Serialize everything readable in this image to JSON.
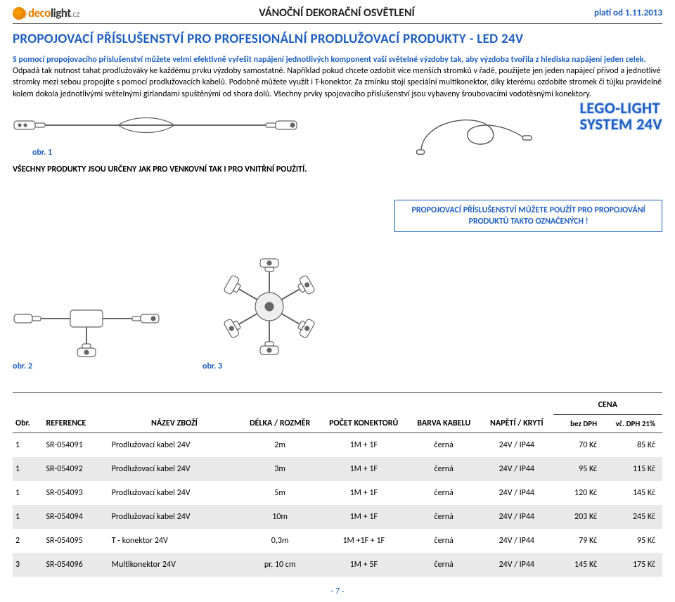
{
  "header": {
    "brand_deco": "deco",
    "brand_light": "light",
    "brand_cz": ".cz",
    "title": "VÁNOČNÍ DEKORAČNÍ OSVĚTLENÍ",
    "valid": "platí od 1.11.2013"
  },
  "title": "PROPOJOVACÍ  PŘÍSLUŠENSTVÍ  PRO  PROFESIONÁLNÍ  PRODLUŽOVACÍ  PRODUKTY - LED 24V",
  "desc_lead": "S pomocí propojovacího příslušenství můžete velmi efektivně vyřešit napájení jednotlivých komponent vaší světelné výzdoby tak, aby výzdoba tvořila z hlediska napájení jeden celek.",
  "desc_rest": " Odpadá tak nutnost tahat prodlužováky ke každému prvku výzdoby samostatně. Například pokud chcete ozdobit více menších stromků v řadě, použijete jen jeden napájecí přívod a jednotlivé stromky mezi sebou propojíte s pomocí prodlužovacích kabelů. Podobně můžete využít i T-konektor. Za zmínku stojí speciální multikonektor, díky kterému ozdobíte stromek či tújku pravidelně kolem dokola jednotlivými světelnými girlandami spuštěnými od shora dolů. Všechny prvky spojovacího příslušenství jsou vybaveny šroubovacími vodotěsnými konektory.",
  "lego1": "LEGO-LIGHT",
  "lego2": "SYSTEM 24V",
  "fig1": "obr. 1",
  "fig2": "obr. 2",
  "fig3": "obr. 3",
  "usage_note": "VŠECHNY PRODUKTY JSOU URČENY JAK PRO VENKOVNÍ TAK I PRO VNITŘNÍ POUŽITÍ.",
  "bluebox": "PROPOJOVACÍ PŘÍSLUŠENSTVÍ MŮŽETE POUŽÍT PRO PROPOJOVÁNÍ PRODUKTŮ TAKTO OZNAČENÝCH !",
  "table": {
    "headers": {
      "obr": "Obr.",
      "ref": "REFERENCE",
      "name": "NÁZEV ZBOŽÍ",
      "size": "DÉLKA / ROZMĚR",
      "conn": "POČET KONEKTORŮ",
      "color": "BARVA KABELU",
      "volt": "NAPĚTÍ / KRYTÍ",
      "price": "CENA",
      "p1": "bez DPH",
      "p2": "vč. DPH 21%"
    },
    "rows": [
      {
        "obr": "1",
        "ref": "SR-054091",
        "name": "Prodlužovací kabel 24V",
        "size": "2m",
        "conn": "1M + 1F",
        "color": "černá",
        "volt": "24V / IP44",
        "p1": "70 Kč",
        "p2": "85 Kč",
        "alt": false
      },
      {
        "obr": "1",
        "ref": "SR-054092",
        "name": "Prodlužovací kabel 24V",
        "size": "3m",
        "conn": "1M + 1F",
        "color": "černá",
        "volt": "24V / IP44",
        "p1": "95 Kč",
        "p2": "115 Kč",
        "alt": true
      },
      {
        "obr": "1",
        "ref": "SR-054093",
        "name": "Prodlužovací kabel 24V",
        "size": "5m",
        "conn": "1M + 1F",
        "color": "černá",
        "volt": "24V / IP44",
        "p1": "120 Kč",
        "p2": "145 Kč",
        "alt": false
      },
      {
        "obr": "1",
        "ref": "SR-054094",
        "name": "Prodlužovací kabel 24V",
        "size": "10m",
        "conn": "1M + 1F",
        "color": "černá",
        "volt": "24V / IP44",
        "p1": "203 Kč",
        "p2": "245 Kč",
        "alt": true
      },
      {
        "obr": "2",
        "ref": "SR-054095",
        "name": "T - konektor 24V",
        "size": "0,3m",
        "conn": "1M +1F + 1F",
        "color": "černá",
        "volt": "24V / IP44",
        "p1": "79 Kč",
        "p2": "95 Kč",
        "alt": false
      },
      {
        "obr": "3",
        "ref": "SR-054096",
        "name": "Multikonektor 24V",
        "size": "pr. 10 cm",
        "conn": "1M + 5F",
        "color": "černá",
        "volt": "24V / IP44",
        "p1": "145 Kč",
        "p2": "175 Kč",
        "alt": true
      }
    ]
  },
  "pagenum": "- 7 -",
  "colors": {
    "blue": "#1f5fbf",
    "orange": "#e67e00",
    "altrow": "#e9e9e9"
  }
}
